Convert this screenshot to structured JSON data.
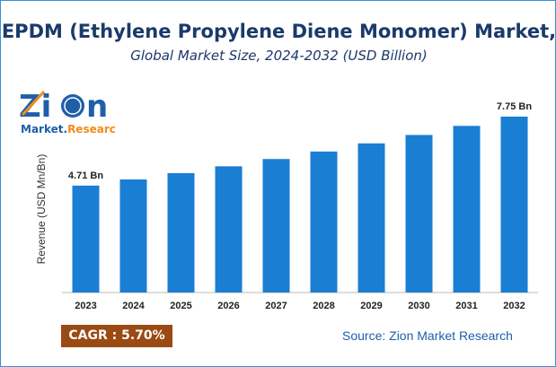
{
  "title": "EPDM (Ethylene Propylene Diene Monomer) Market,",
  "subtitle": "Global Market Size, 2024-2032 (USD Billion)",
  "logo_text": "Zion Market.Research",
  "cagr": "CAGR : 5.70%",
  "source": "Source: Zion Market Research",
  "colors": {
    "bar": "#1a7ed3",
    "title": "#1b3a6b",
    "cagr_bg": "#9a4a14"
  },
  "chart_data": {
    "type": "bar",
    "title": "EPDM (Ethylene Propylene Diene Monomer) Market,",
    "subtitle": "Global Market Size, 2024-2032 (USD Billion)",
    "xlabel": "",
    "ylabel": "Revenue (USD Mn/Bn)",
    "ylim": [
      0,
      8
    ],
    "grid": false,
    "categories": [
      "2023",
      "2024",
      "2025",
      "2026",
      "2027",
      "2028",
      "2029",
      "2030",
      "2031",
      "2032"
    ],
    "values": [
      4.71,
      4.98,
      5.26,
      5.56,
      5.88,
      6.21,
      6.57,
      6.94,
      7.34,
      7.75
    ],
    "data_labels": {
      "0": "4.71 Bn",
      "9": "7.75 Bn"
    }
  }
}
